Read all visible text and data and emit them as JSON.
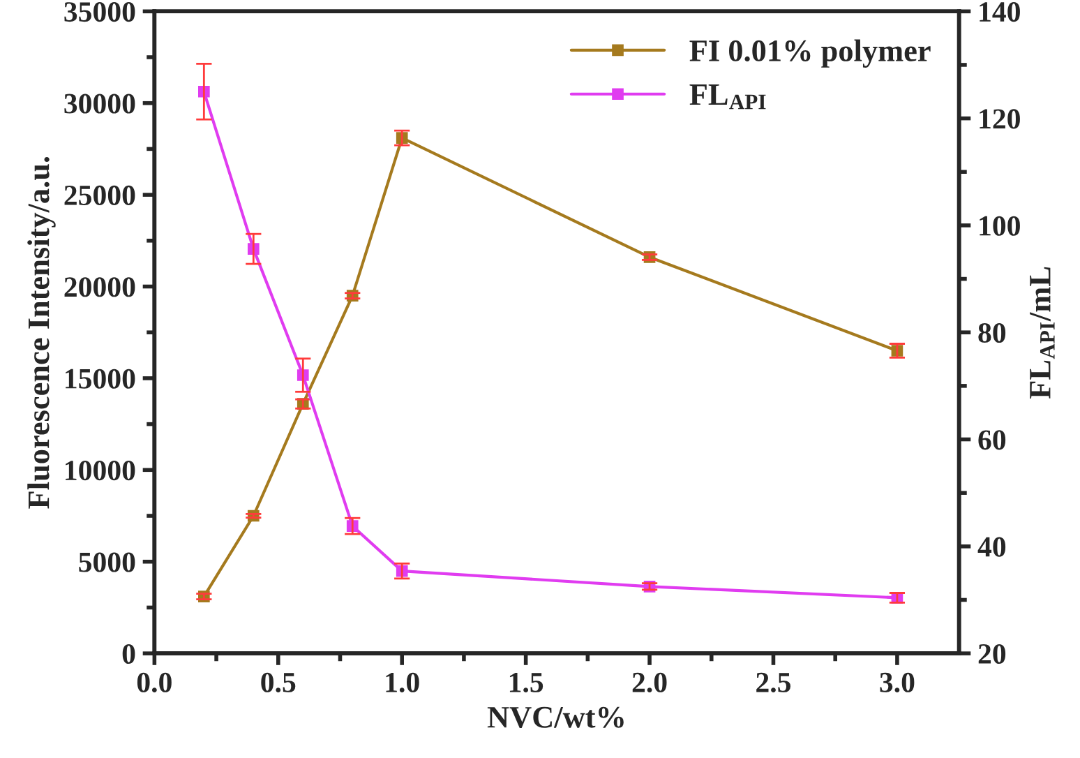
{
  "chart_data": {
    "type": "line",
    "xlabel": "NVC/wt%",
    "ylabel": "Fluorescence Intensity/a.u.",
    "y2label": "FL$_{API}$/mL",
    "x": [
      0.2,
      0.4,
      0.6,
      0.8,
      1.0,
      2.0,
      3.0
    ],
    "series": [
      {
        "name": "FI 0.01% polymer",
        "color": "#a57a1e",
        "values": [
          3100,
          7500,
          13600,
          19500,
          28100,
          21600,
          16500
        ],
        "errors": [
          150,
          100,
          250,
          150,
          400,
          150,
          380
        ]
      },
      {
        "name": "FL$_{API}$",
        "color": "#e03cf0",
        "axis": "y2",
        "values": [
          125,
          95.6,
          72,
          43.8,
          35.4,
          32.5,
          30.4
        ],
        "errors": [
          5.2,
          2.8,
          3.1,
          1.5,
          1.4,
          0.6,
          0.9
        ]
      }
    ],
    "xlim": [
      0,
      3.25
    ],
    "xticks": [
      {
        "value": 0,
        "label": "0.0"
      },
      0.5,
      {
        "value": 1,
        "label": "1.0"
      },
      1.5,
      {
        "value": 2,
        "label": "2.0"
      },
      2.5,
      {
        "value": 3,
        "label": "3.0"
      }
    ],
    "ylim": [
      0,
      35000
    ],
    "yticks": [
      0,
      5000,
      10000,
      15000,
      20000,
      25000,
      30000,
      35000
    ],
    "y2lim": [
      20,
      140
    ],
    "y2ticks": [
      20,
      40,
      60,
      80,
      100,
      120,
      140
    ],
    "marker": "square",
    "line_style": "solid",
    "legend": "top right",
    "grid": false
  }
}
